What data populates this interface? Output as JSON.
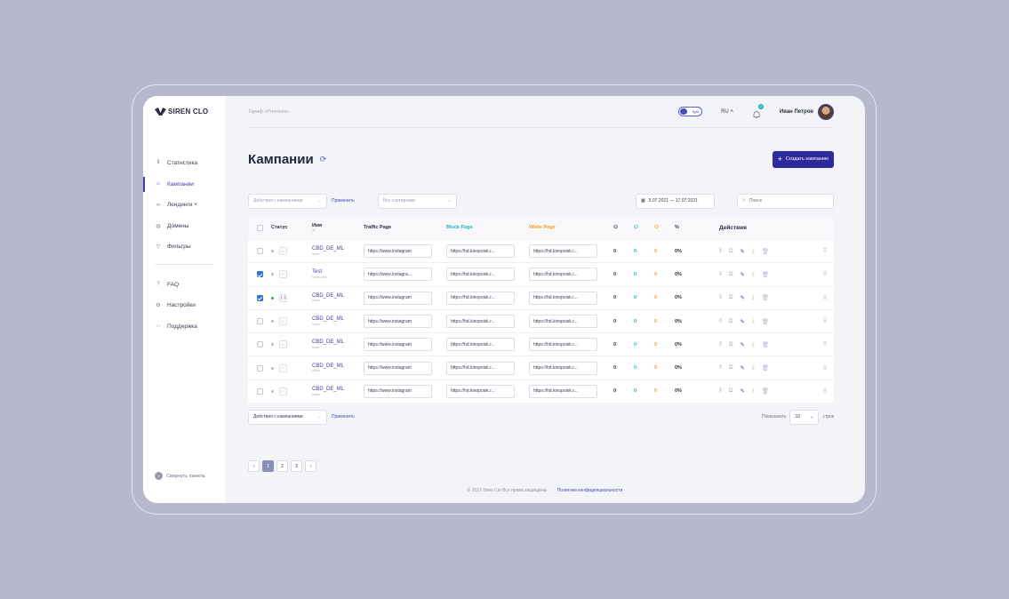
{
  "app": {
    "logo": "SIREN CLO"
  },
  "sidebar": {
    "items": [
      {
        "label": "Статистика",
        "icon": "chart-icon"
      },
      {
        "label": "Кампании",
        "icon": "home-icon"
      },
      {
        "label": "Лендинги ˅",
        "icon": "link-icon"
      },
      {
        "label": "Домены",
        "icon": "globe-icon"
      },
      {
        "label": "Фильтры",
        "icon": "filter-icon"
      }
    ],
    "items2": [
      {
        "label": "FAQ",
        "icon": "help-icon"
      },
      {
        "label": "Настройки",
        "icon": "gear-icon"
      },
      {
        "label": "Поддержка",
        "icon": "headset-icon"
      }
    ],
    "collapse": "Свернуть панель"
  },
  "topbar": {
    "tariff": "Тариф «Premium»",
    "theme": "light",
    "lang": "RU ˄",
    "notifications": "2",
    "user": "Иван Петров"
  },
  "page": {
    "title": "Кампании",
    "create": "Создать кампанию"
  },
  "filters": {
    "actions": "Действия с кампаниями",
    "apply": "Применить",
    "sort": "Без сортировки",
    "date": "5.07.2021 — 17.07.2021",
    "search_placeholder": "Поиск"
  },
  "table": {
    "headers": {
      "status": "Статус",
      "name": "Имя",
      "name_sub": "id",
      "traffic": "Traffic Page",
      "block": "Block Page",
      "white": "White Page",
      "pct": "%",
      "actions": "Действия"
    },
    "rows": [
      {
        "name": "CBD_DE_ML",
        "sub": "insta",
        "traffic": "https://www.instagram",
        "block": "https://hd.kinopoisk.r...",
        "white": "https://hd.kinopoisk.r...",
        "a": "0",
        "b": "0",
        "c": "0",
        "pct": "0%"
      },
      {
        "name": "Test",
        "sub": "kinopoisk",
        "traffic": "https://www.instagra...",
        "block": "https://hd.kinopoisk.r...",
        "white": "https://hd.kinopoisk.r...",
        "a": "0",
        "b": "0",
        "c": "0",
        "pct": "0%"
      },
      {
        "name": "CBD_DE_ML",
        "sub": "insta",
        "traffic": "https://www.instagram",
        "block": "https://hd.kinopoisk.r...",
        "white": "https://hd.kinopoisk.r...",
        "a": "0",
        "b": "0",
        "c": "0",
        "pct": "0%"
      },
      {
        "name": "CBD_DE_ML",
        "sub": "insta",
        "traffic": "https://www.instagram",
        "block": "https://hd.kinopoisk.r...",
        "white": "https://hd.kinopoisk.r...",
        "a": "0",
        "b": "0",
        "c": "0",
        "pct": "0%"
      },
      {
        "name": "CBD_DE_ML",
        "sub": "insta",
        "traffic": "https://www.instagram",
        "block": "https://hd.kinopoisk.r...",
        "white": "https://hd.kinopoisk.r...",
        "a": "0",
        "b": "0",
        "c": "0",
        "pct": "0%"
      },
      {
        "name": "CBD_DE_ML",
        "sub": "insta",
        "traffic": "https://www.instagram",
        "block": "https://hd.kinopoisk.r...",
        "white": "https://hd.kinopoisk.r...",
        "a": "0",
        "b": "0",
        "c": "0",
        "pct": "0%"
      },
      {
        "name": "CBD_DE_ML",
        "sub": "insta",
        "traffic": "https://www.instagram",
        "block": "https://hd.kinopoisk.r...",
        "white": "https://hd.kinopoisk.r...",
        "a": "0",
        "b": "0",
        "c": "0",
        "pct": "0%"
      }
    ]
  },
  "bottom": {
    "actions": "Действия с кампаниями",
    "apply": "Применить",
    "show": "Показывать",
    "per_page": "10",
    "rows_label": "строк"
  },
  "pager": {
    "pages": [
      "1",
      "2",
      "3"
    ],
    "prev": "‹",
    "next": "›"
  },
  "footer": {
    "copy": "© 2021 Siren Clo  Все права защищены",
    "policy": "Политика конфиденциальности"
  },
  "colors": {
    "accent": "#2e2a9e",
    "teal": "#19b4c9",
    "orange": "#f2a11f",
    "background": "#b7b8cb"
  }
}
